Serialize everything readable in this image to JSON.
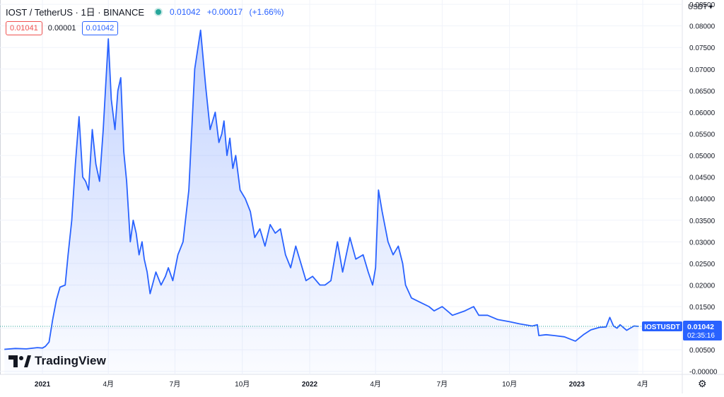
{
  "header": {
    "symbol_line": "IOST / TetherUS · 1日 · BINANCE",
    "last_price": "0.01042",
    "change_abs": "+0.00017",
    "change_pct": "(+1.66%)"
  },
  "quote_boxes": {
    "sell": "0.01041",
    "spread": "0.00001",
    "buy": "0.01042"
  },
  "currency_menu": "USDT ▾",
  "price_tag": {
    "symbol": "IOSTUSDT",
    "price": "0.01042",
    "countdown": "02:35:16"
  },
  "logo_text": "TradingView",
  "settings_icon": "gear-icon",
  "colors": {
    "line": "#2962ff",
    "area_top": "#2962ff",
    "up": "#26a69a",
    "sell": "#ef5350"
  },
  "chart_data": {
    "type": "area",
    "series": [
      {
        "name": "IOSTUSDT",
        "x": [
          "2020-11-10",
          "2020-11-25",
          "2020-12-10",
          "2020-12-25",
          "2021-01-01",
          "2021-01-05",
          "2021-01-10",
          "2021-01-15",
          "2021-01-20",
          "2021-01-25",
          "2021-02-01",
          "2021-02-05",
          "2021-02-10",
          "2021-02-15",
          "2021-02-20",
          "2021-02-25",
          "2021-03-01",
          "2021-03-05",
          "2021-03-10",
          "2021-03-15",
          "2021-03-20",
          "2021-03-25",
          "2021-04-01",
          "2021-04-05",
          "2021-04-10",
          "2021-04-14",
          "2021-04-18",
          "2021-04-22",
          "2021-04-26",
          "2021-05-01",
          "2021-05-05",
          "2021-05-09",
          "2021-05-13",
          "2021-05-17",
          "2021-05-20",
          "2021-05-24",
          "2021-05-28",
          "2021-06-05",
          "2021-06-12",
          "2021-06-18",
          "2021-06-22",
          "2021-06-28",
          "2021-07-05",
          "2021-07-12",
          "2021-07-20",
          "2021-07-28",
          "2021-08-05",
          "2021-08-12",
          "2021-08-18",
          "2021-08-25",
          "2021-08-30",
          "2021-09-03",
          "2021-09-06",
          "2021-09-10",
          "2021-09-14",
          "2021-09-18",
          "2021-09-22",
          "2021-09-28",
          "2021-10-05",
          "2021-10-12",
          "2021-10-18",
          "2021-10-25",
          "2021-11-01",
          "2021-11-08",
          "2021-11-15",
          "2021-11-22",
          "2021-11-29",
          "2021-12-06",
          "2021-12-13",
          "2021-12-20",
          "2021-12-27",
          "2022-01-05",
          "2022-01-15",
          "2022-01-22",
          "2022-01-30",
          "2022-02-08",
          "2022-02-15",
          "2022-02-25",
          "2022-03-05",
          "2022-03-15",
          "2022-03-22",
          "2022-03-28",
          "2022-04-01",
          "2022-04-05",
          "2022-04-10",
          "2022-04-18",
          "2022-04-25",
          "2022-05-02",
          "2022-05-08",
          "2022-05-12",
          "2022-05-20",
          "2022-06-01",
          "2022-06-13",
          "2022-06-20",
          "2022-07-01",
          "2022-07-15",
          "2022-08-01",
          "2022-08-13",
          "2022-08-20",
          "2022-09-01",
          "2022-09-15",
          "2022-10-01",
          "2022-10-15",
          "2022-11-01",
          "2022-11-08",
          "2022-11-10",
          "2022-11-20",
          "2022-12-01",
          "2022-12-15",
          "2022-12-30",
          "2023-01-10",
          "2023-01-20",
          "2023-02-01",
          "2023-02-10",
          "2023-02-15",
          "2023-02-20",
          "2023-02-25",
          "2023-03-01",
          "2023-03-10",
          "2023-03-20",
          "2023-03-26"
        ],
        "values": [
          0.0051,
          0.0053,
          0.0052,
          0.0055,
          0.0054,
          0.0058,
          0.0068,
          0.012,
          0.0165,
          0.0195,
          0.02,
          0.027,
          0.035,
          0.048,
          0.059,
          0.045,
          0.044,
          0.042,
          0.056,
          0.048,
          0.044,
          0.056,
          0.077,
          0.063,
          0.056,
          0.065,
          0.068,
          0.051,
          0.044,
          0.03,
          0.035,
          0.032,
          0.027,
          0.03,
          0.026,
          0.023,
          0.018,
          0.023,
          0.02,
          0.022,
          0.024,
          0.021,
          0.027,
          0.03,
          0.042,
          0.07,
          0.079,
          0.066,
          0.056,
          0.06,
          0.053,
          0.055,
          0.058,
          0.05,
          0.054,
          0.047,
          0.05,
          0.042,
          0.04,
          0.037,
          0.031,
          0.033,
          0.029,
          0.034,
          0.032,
          0.033,
          0.027,
          0.024,
          0.029,
          0.025,
          0.021,
          0.022,
          0.02,
          0.02,
          0.021,
          0.03,
          0.023,
          0.031,
          0.026,
          0.027,
          0.023,
          0.02,
          0.024,
          0.042,
          0.037,
          0.03,
          0.027,
          0.029,
          0.025,
          0.02,
          0.017,
          0.016,
          0.015,
          0.014,
          0.015,
          0.013,
          0.014,
          0.015,
          0.013,
          0.013,
          0.012,
          0.0115,
          0.011,
          0.0105,
          0.0108,
          0.0083,
          0.0085,
          0.0083,
          0.008,
          0.007,
          0.0085,
          0.0096,
          0.0102,
          0.0103,
          0.0125,
          0.0105,
          0.01,
          0.0108,
          0.0095,
          0.0105,
          0.01042
        ]
      }
    ],
    "x_tick_labels": [
      {
        "label": "2021",
        "x": "2021-01-01"
      },
      {
        "label": "4月",
        "x": "2021-04-01"
      },
      {
        "label": "7月",
        "x": "2021-07-01"
      },
      {
        "label": "10月",
        "x": "2021-10-01"
      },
      {
        "label": "2022",
        "x": "2022-01-01"
      },
      {
        "label": "4月",
        "x": "2022-04-01"
      },
      {
        "label": "7月",
        "x": "2022-07-01"
      },
      {
        "label": "10月",
        "x": "2022-10-01"
      },
      {
        "label": "2023",
        "x": "2023-01-01"
      },
      {
        "label": "4月",
        "x": "2023-04-01"
      }
    ],
    "x_range": [
      "2020-11-04",
      "2023-05-25"
    ],
    "y_ticks": [
      {
        "value": 0.08,
        "label": "0.08000"
      },
      {
        "value": 0.075,
        "label": "0.07500"
      },
      {
        "value": 0.07,
        "label": "0.07000"
      },
      {
        "value": 0.065,
        "label": "0.06500"
      },
      {
        "value": 0.06,
        "label": "0.06000"
      },
      {
        "value": 0.055,
        "label": "0.05500"
      },
      {
        "value": 0.05,
        "label": "0.05000"
      },
      {
        "value": 0.045,
        "label": "0.04500"
      },
      {
        "value": 0.04,
        "label": "0.04000"
      },
      {
        "value": 0.035,
        "label": "0.03500"
      },
      {
        "value": 0.03,
        "label": "0.03000"
      },
      {
        "value": 0.025,
        "label": "0.02500"
      },
      {
        "value": 0.02,
        "label": "0.02000"
      },
      {
        "value": 0.015,
        "label": "0.01500"
      },
      {
        "value": 0.01,
        "label": "0.01000"
      },
      {
        "value": 0.005,
        "label": "0.00500"
      },
      {
        "value": 0.0,
        "label": "-0.00000"
      }
    ],
    "y_top_partial": {
      "value": 0.085,
      "label": "0.08500"
    },
    "ylim": [
      -0.0007,
      0.086
    ],
    "last_value": 0.01042,
    "grid": true
  }
}
